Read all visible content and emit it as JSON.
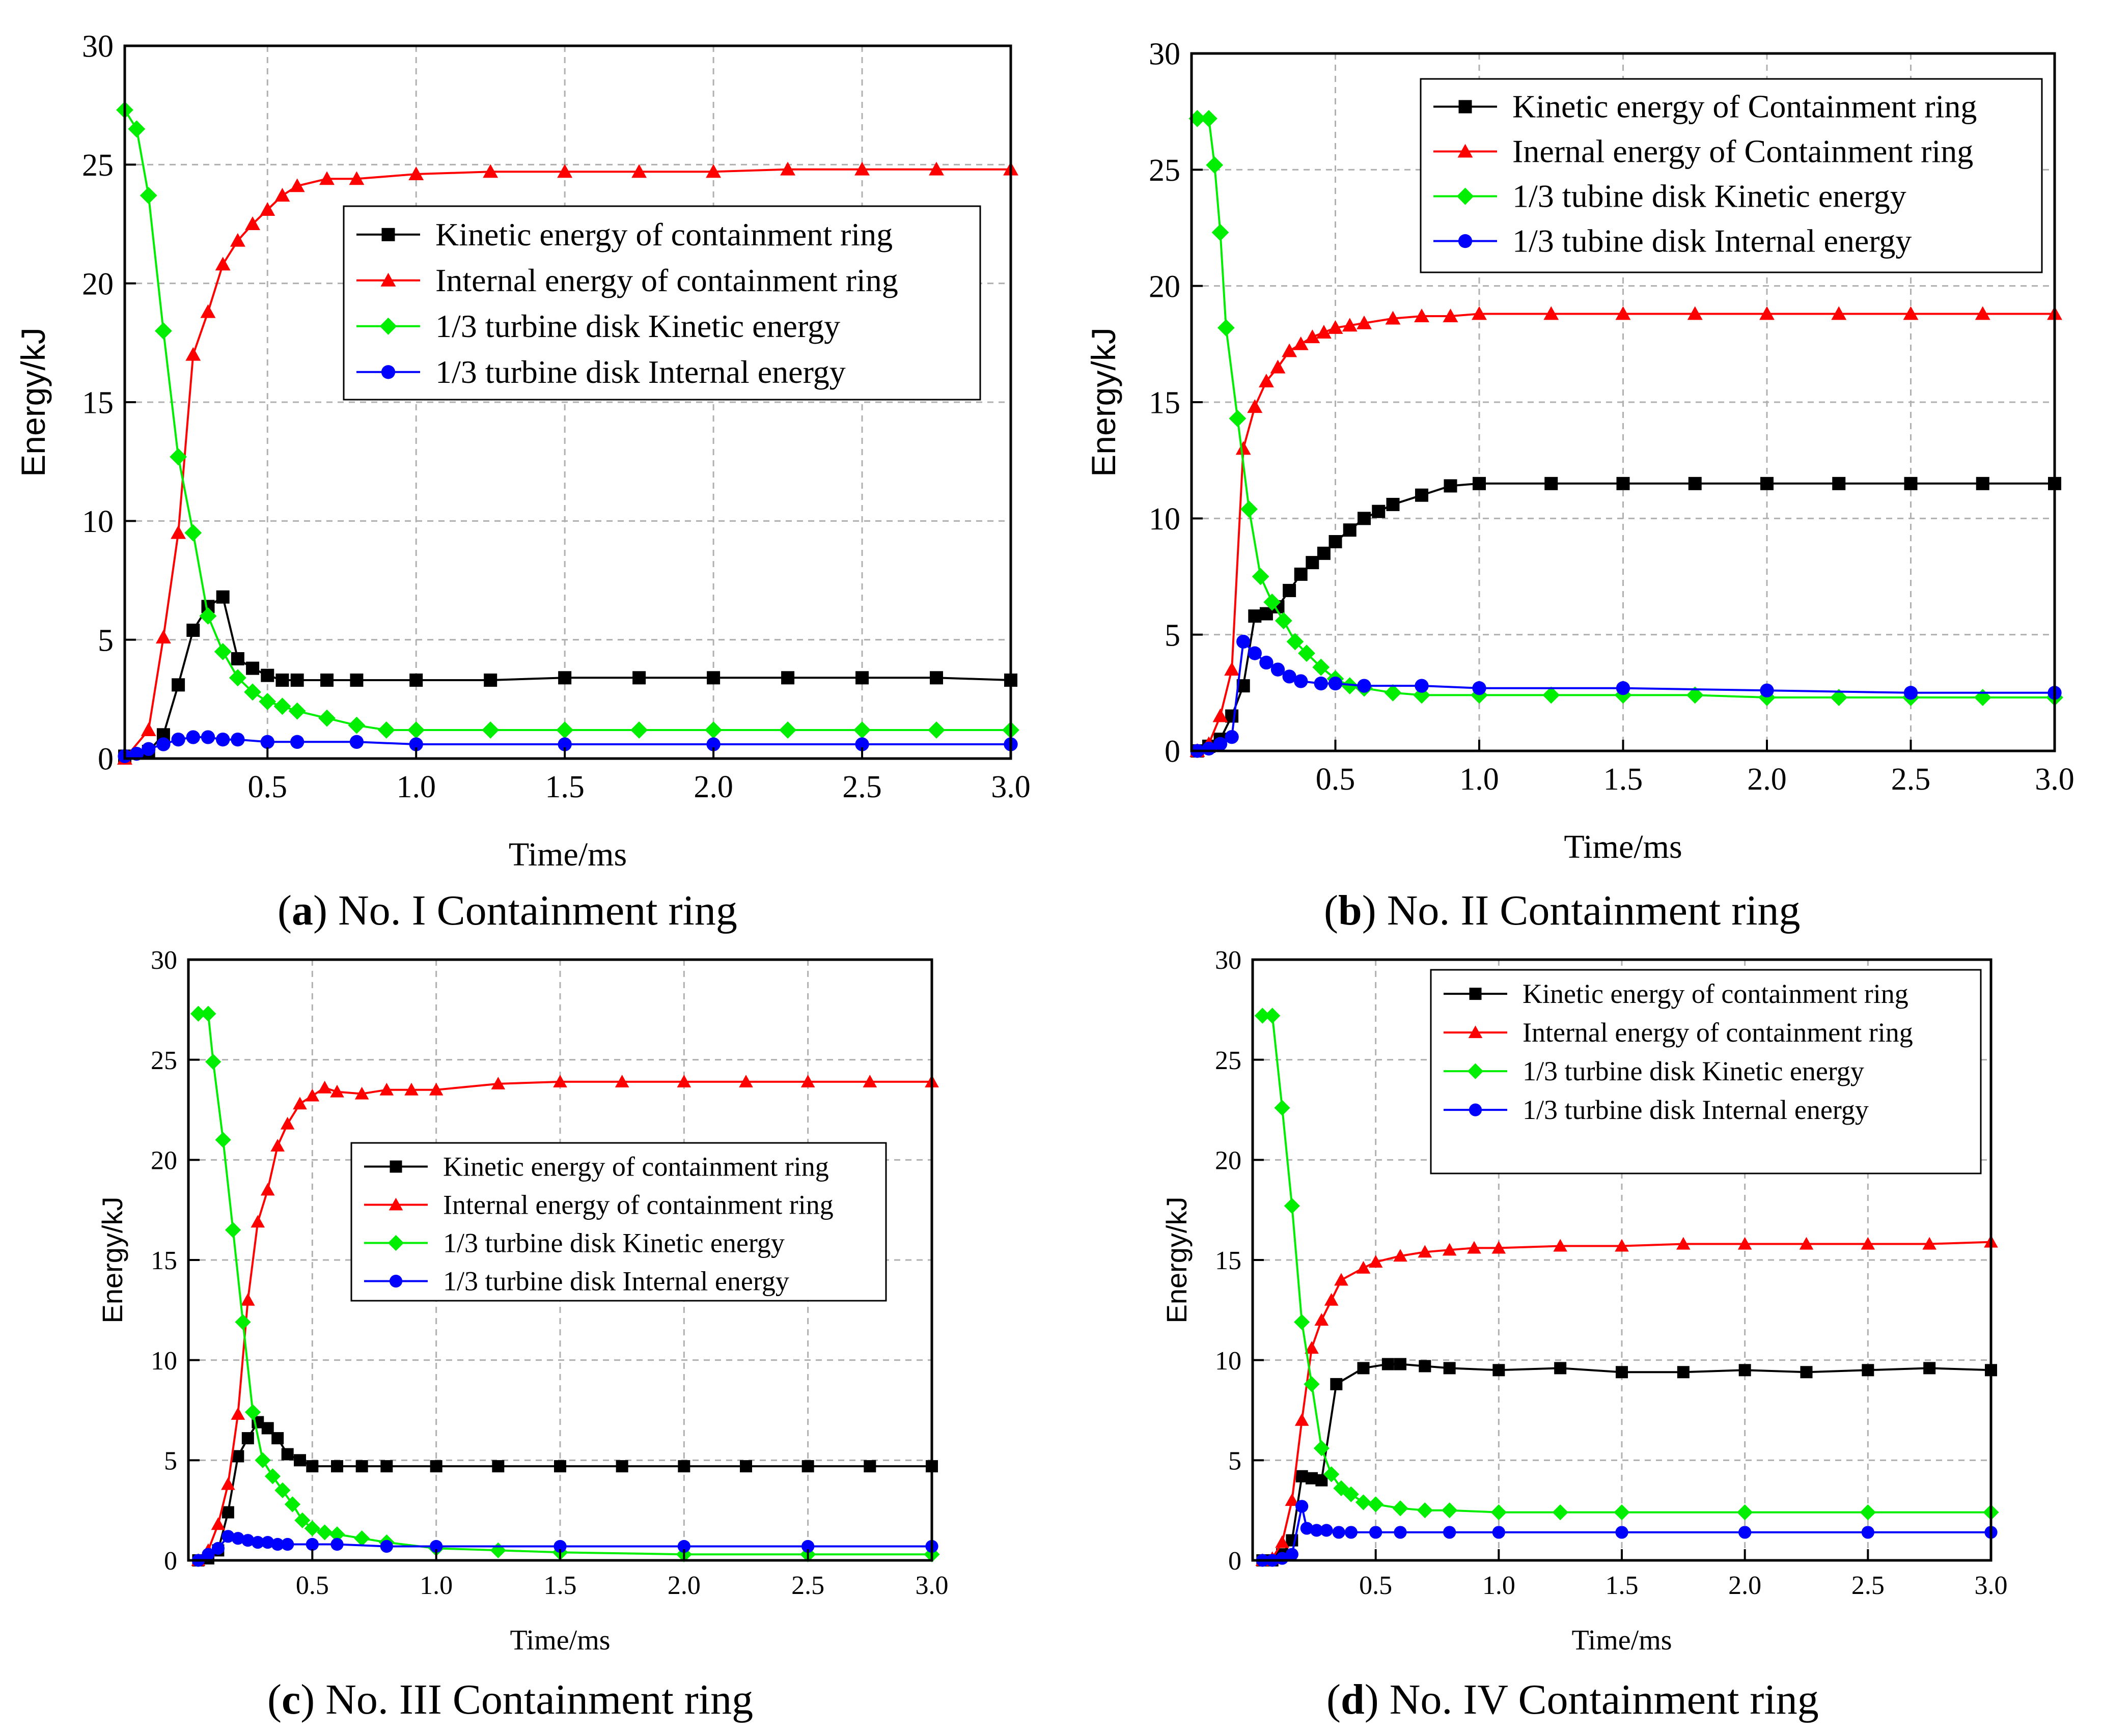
{
  "figure": {
    "panels": [
      {
        "id": "a",
        "letter": "a",
        "caption": "No. I Containment ring"
      },
      {
        "id": "b",
        "letter": "b",
        "caption": "No. II Containment ring"
      },
      {
        "id": "c",
        "letter": "c",
        "caption": "No. III Containment ring"
      },
      {
        "id": "d",
        "letter": "d",
        "caption": "No. IV Containment ring"
      }
    ]
  },
  "colors": {
    "kinetic_ring": "#000000",
    "internal_ring": "#ff0000",
    "disk_kinetic": "#00ee00",
    "disk_internal": "#0000ff"
  },
  "chart_data": [
    {
      "type": "line",
      "panel": "a",
      "xlabel": "Time/ms",
      "ylabel": "Energy/kJ",
      "xlim": [
        0.02,
        3.0
      ],
      "ylim": [
        0,
        30
      ],
      "xticks": [
        "0.5",
        "1.0",
        "1.5",
        "2.0",
        "2.5",
        "3.0"
      ],
      "yticks": [
        "0",
        "5",
        "10",
        "15",
        "20",
        "25",
        "30"
      ],
      "grid": true,
      "legend_position": "upper-right",
      "series": [
        {
          "name": "Kinetic energy of containment ring",
          "marker": "square",
          "color": "#000000",
          "x": [
            0.02,
            0.1,
            0.15,
            0.2,
            0.25,
            0.3,
            0.35,
            0.4,
            0.45,
            0.5,
            0.55,
            0.6,
            0.7,
            0.8,
            1.0,
            1.25,
            1.5,
            1.75,
            2.0,
            2.25,
            2.5,
            2.75,
            3.0
          ],
          "y": [
            0.1,
            0.3,
            1.0,
            3.1,
            5.4,
            6.4,
            6.8,
            4.2,
            3.8,
            3.5,
            3.3,
            3.3,
            3.3,
            3.3,
            3.3,
            3.3,
            3.4,
            3.4,
            3.4,
            3.4,
            3.4,
            3.4,
            3.3
          ]
        },
        {
          "name": "Internal energy of containment ring",
          "marker": "triangle",
          "color": "#ff0000",
          "x": [
            0.02,
            0.1,
            0.15,
            0.2,
            0.25,
            0.3,
            0.35,
            0.4,
            0.45,
            0.5,
            0.55,
            0.6,
            0.7,
            0.8,
            1.0,
            1.25,
            1.5,
            1.75,
            2.0,
            2.25,
            2.5,
            2.75,
            3.0
          ],
          "y": [
            0.0,
            1.2,
            5.1,
            9.5,
            17.0,
            18.8,
            20.8,
            21.8,
            22.5,
            23.1,
            23.7,
            24.1,
            24.4,
            24.4,
            24.6,
            24.7,
            24.7,
            24.7,
            24.7,
            24.8,
            24.8,
            24.8,
            24.8
          ]
        },
        {
          "name": "1/3 turbine disk Kinetic energy",
          "marker": "diamond",
          "color": "#00ee00",
          "x": [
            0.02,
            0.06,
            0.1,
            0.15,
            0.2,
            0.25,
            0.3,
            0.35,
            0.4,
            0.45,
            0.5,
            0.55,
            0.6,
            0.7,
            0.8,
            0.9,
            1.0,
            1.25,
            1.5,
            1.75,
            2.0,
            2.25,
            2.5,
            2.75,
            3.0
          ],
          "y": [
            27.3,
            26.5,
            23.7,
            18.0,
            12.7,
            9.5,
            6.0,
            4.5,
            3.4,
            2.8,
            2.4,
            2.2,
            2.0,
            1.7,
            1.4,
            1.2,
            1.2,
            1.2,
            1.2,
            1.2,
            1.2,
            1.2,
            1.2,
            1.2,
            1.2
          ]
        },
        {
          "name": "1/3 turbine disk Internal energy",
          "marker": "circle",
          "color": "#0000ff",
          "x": [
            0.02,
            0.06,
            0.1,
            0.15,
            0.2,
            0.25,
            0.3,
            0.35,
            0.4,
            0.5,
            0.6,
            0.8,
            1.0,
            1.5,
            2.0,
            2.5,
            3.0
          ],
          "y": [
            0.1,
            0.2,
            0.4,
            0.6,
            0.8,
            0.9,
            0.9,
            0.8,
            0.8,
            0.7,
            0.7,
            0.7,
            0.6,
            0.6,
            0.6,
            0.6,
            0.6
          ]
        }
      ]
    },
    {
      "type": "line",
      "panel": "b",
      "xlabel": "Time/ms",
      "ylabel": "Energy/kJ",
      "xlim": [
        0.0,
        3.0
      ],
      "ylim": [
        0,
        30
      ],
      "xticks": [
        "0.5",
        "1.0",
        "1.5",
        "2.0",
        "2.5",
        "3.0"
      ],
      "yticks": [
        "0",
        "5",
        "10",
        "15",
        "20",
        "25",
        "30"
      ],
      "grid": true,
      "legend_position": "upper-right",
      "series": [
        {
          "name": "Kinetic energy of Containment ring",
          "marker": "square",
          "color": "#000000",
          "x": [
            0.02,
            0.06,
            0.1,
            0.14,
            0.18,
            0.22,
            0.26,
            0.3,
            0.34,
            0.38,
            0.42,
            0.46,
            0.5,
            0.55,
            0.6,
            0.65,
            0.7,
            0.8,
            0.9,
            1.0,
            1.25,
            1.5,
            1.75,
            2.0,
            2.25,
            2.5,
            2.75,
            3.0
          ],
          "y": [
            0.0,
            0.2,
            0.5,
            1.5,
            2.8,
            5.8,
            5.9,
            6.2,
            6.9,
            7.6,
            8.1,
            8.5,
            9.0,
            9.5,
            10.0,
            10.3,
            10.6,
            11.0,
            11.4,
            11.5,
            11.5,
            11.5,
            11.5,
            11.5,
            11.5,
            11.5,
            11.5,
            11.5
          ]
        },
        {
          "name": "Inernal energy of Containment ring",
          "marker": "triangle",
          "color": "#ff0000",
          "x": [
            0.02,
            0.06,
            0.1,
            0.14,
            0.18,
            0.22,
            0.26,
            0.3,
            0.34,
            0.38,
            0.42,
            0.46,
            0.5,
            0.55,
            0.6,
            0.7,
            0.8,
            0.9,
            1.0,
            1.25,
            1.5,
            1.75,
            2.0,
            2.25,
            2.5,
            2.75,
            3.0
          ],
          "y": [
            0.0,
            0.3,
            1.5,
            3.5,
            13.0,
            14.8,
            15.9,
            16.5,
            17.2,
            17.5,
            17.8,
            18.0,
            18.2,
            18.3,
            18.4,
            18.6,
            18.7,
            18.7,
            18.8,
            18.8,
            18.8,
            18.8,
            18.8,
            18.8,
            18.8,
            18.8,
            18.8
          ]
        },
        {
          "name": "1/3 tubine disk Kinetic energy",
          "marker": "diamond",
          "color": "#00ee00",
          "x": [
            0.02,
            0.06,
            0.08,
            0.1,
            0.12,
            0.16,
            0.2,
            0.24,
            0.28,
            0.32,
            0.36,
            0.4,
            0.45,
            0.5,
            0.55,
            0.6,
            0.7,
            0.8,
            1.0,
            1.25,
            1.5,
            1.75,
            2.0,
            2.25,
            2.5,
            2.75,
            3.0
          ],
          "y": [
            27.2,
            27.2,
            25.2,
            22.3,
            18.2,
            14.3,
            10.4,
            7.5,
            6.4,
            5.6,
            4.7,
            4.2,
            3.6,
            3.1,
            2.8,
            2.7,
            2.5,
            2.4,
            2.4,
            2.4,
            2.4,
            2.4,
            2.3,
            2.3,
            2.3,
            2.3,
            2.3
          ]
        },
        {
          "name": "1/3 tubine disk Internal energy",
          "marker": "circle",
          "color": "#0000ff",
          "x": [
            0.02,
            0.06,
            0.1,
            0.14,
            0.18,
            0.22,
            0.26,
            0.3,
            0.34,
            0.38,
            0.45,
            0.5,
            0.6,
            0.8,
            1.0,
            1.5,
            2.0,
            2.5,
            3.0
          ],
          "y": [
            0.0,
            0.1,
            0.3,
            0.6,
            4.7,
            4.2,
            3.8,
            3.5,
            3.2,
            3.0,
            2.9,
            2.9,
            2.8,
            2.8,
            2.7,
            2.7,
            2.6,
            2.5,
            2.5
          ]
        }
      ]
    },
    {
      "type": "line",
      "panel": "c",
      "xlabel": "Time/ms",
      "ylabel": "Energy/kJ",
      "xlim": [
        0.0,
        3.0
      ],
      "ylim": [
        0,
        30
      ],
      "xticks": [
        "0.5",
        "1.0",
        "1.5",
        "2.0",
        "2.5",
        "3.0"
      ],
      "yticks": [
        "0",
        "5",
        "10",
        "15",
        "20",
        "25",
        "30"
      ],
      "grid": true,
      "legend_position": "center-right",
      "series": [
        {
          "name": "Kinetic energy of containment ring",
          "marker": "square",
          "color": "#000000",
          "x": [
            0.04,
            0.08,
            0.12,
            0.16,
            0.2,
            0.24,
            0.28,
            0.32,
            0.36,
            0.4,
            0.45,
            0.5,
            0.6,
            0.7,
            0.8,
            1.0,
            1.25,
            1.5,
            1.75,
            2.0,
            2.25,
            2.5,
            2.75,
            3.0
          ],
          "y": [
            0.0,
            0.1,
            0.5,
            2.4,
            5.2,
            6.1,
            6.9,
            6.6,
            6.1,
            5.3,
            5.0,
            4.7,
            4.7,
            4.7,
            4.7,
            4.7,
            4.7,
            4.7,
            4.7,
            4.7,
            4.7,
            4.7,
            4.7,
            4.7
          ]
        },
        {
          "name": "Internal energy of containment ring",
          "marker": "triangle",
          "color": "#ff0000",
          "x": [
            0.04,
            0.08,
            0.12,
            0.16,
            0.2,
            0.24,
            0.28,
            0.32,
            0.36,
            0.4,
            0.45,
            0.5,
            0.55,
            0.6,
            0.7,
            0.8,
            0.9,
            1.0,
            1.25,
            1.5,
            1.75,
            2.0,
            2.25,
            2.5,
            2.75,
            3.0
          ],
          "y": [
            0.0,
            0.5,
            1.8,
            3.8,
            7.3,
            13.0,
            16.9,
            18.5,
            20.7,
            21.8,
            22.8,
            23.2,
            23.6,
            23.4,
            23.3,
            23.5,
            23.5,
            23.5,
            23.8,
            23.9,
            23.9,
            23.9,
            23.9,
            23.9,
            23.9,
            23.9
          ]
        },
        {
          "name": "1/3 turbine disk Kinetic energy",
          "marker": "diamond",
          "color": "#00ee00",
          "x": [
            0.04,
            0.08,
            0.1,
            0.14,
            0.18,
            0.22,
            0.26,
            0.3,
            0.34,
            0.38,
            0.42,
            0.46,
            0.5,
            0.55,
            0.6,
            0.7,
            0.8,
            1.0,
            1.25,
            1.5,
            2.0,
            2.5,
            3.0
          ],
          "y": [
            27.3,
            27.3,
            24.9,
            21.0,
            16.5,
            11.9,
            7.4,
            5.0,
            4.2,
            3.5,
            2.8,
            2.0,
            1.6,
            1.4,
            1.3,
            1.1,
            0.9,
            0.6,
            0.5,
            0.4,
            0.3,
            0.3,
            0.3
          ]
        },
        {
          "name": "1/3 turbine disk Internal energy",
          "marker": "circle",
          "color": "#0000ff",
          "x": [
            0.04,
            0.08,
            0.12,
            0.16,
            0.2,
            0.24,
            0.28,
            0.32,
            0.36,
            0.4,
            0.5,
            0.6,
            0.8,
            1.0,
            1.5,
            2.0,
            2.5,
            3.0
          ],
          "y": [
            0.0,
            0.3,
            0.6,
            1.2,
            1.1,
            1.0,
            0.9,
            0.9,
            0.8,
            0.8,
            0.8,
            0.8,
            0.7,
            0.7,
            0.7,
            0.7,
            0.7,
            0.7
          ]
        }
      ]
    },
    {
      "type": "line",
      "panel": "d",
      "xlabel": "Time/ms",
      "ylabel": "Energy/kJ",
      "xlim": [
        0.0,
        3.0
      ],
      "ylim": [
        0,
        30
      ],
      "xticks": [
        "0.5",
        "1.0",
        "1.5",
        "2.0",
        "2.5",
        "3.0"
      ],
      "yticks": [
        "0",
        "5",
        "10",
        "15",
        "20",
        "25",
        "30"
      ],
      "grid": true,
      "legend_position": "upper-right",
      "series": [
        {
          "name": "Kinetic energy of containment ring",
          "marker": "square",
          "color": "#000000",
          "x": [
            0.04,
            0.08,
            0.12,
            0.16,
            0.2,
            0.24,
            0.28,
            0.34,
            0.45,
            0.55,
            0.6,
            0.7,
            0.8,
            1.0,
            1.25,
            1.5,
            1.75,
            2.0,
            2.25,
            2.5,
            2.75,
            3.0
          ],
          "y": [
            0.0,
            0.0,
            0.3,
            1.0,
            4.2,
            4.1,
            4.0,
            8.8,
            9.6,
            9.8,
            9.8,
            9.7,
            9.6,
            9.5,
            9.6,
            9.4,
            9.4,
            9.5,
            9.4,
            9.5,
            9.6,
            9.5
          ]
        },
        {
          "name": "Internal energy of containment ring",
          "marker": "triangle",
          "color": "#ff0000",
          "x": [
            0.04,
            0.08,
            0.12,
            0.16,
            0.2,
            0.24,
            0.28,
            0.32,
            0.36,
            0.45,
            0.5,
            0.6,
            0.7,
            0.8,
            0.9,
            1.0,
            1.25,
            1.5,
            1.75,
            2.0,
            2.25,
            2.5,
            2.75,
            3.0
          ],
          "y": [
            0.0,
            0.1,
            0.9,
            3.0,
            7.0,
            10.6,
            12.0,
            13.0,
            14.0,
            14.6,
            14.9,
            15.2,
            15.4,
            15.5,
            15.6,
            15.6,
            15.7,
            15.7,
            15.8,
            15.8,
            15.8,
            15.8,
            15.8,
            15.9
          ]
        },
        {
          "name": "1/3 turbine disk Kinetic energy",
          "marker": "diamond",
          "color": "#00ee00",
          "x": [
            0.04,
            0.08,
            0.12,
            0.16,
            0.2,
            0.24,
            0.28,
            0.32,
            0.36,
            0.4,
            0.45,
            0.5,
            0.6,
            0.7,
            0.8,
            1.0,
            1.25,
            1.5,
            2.0,
            2.5,
            3.0
          ],
          "y": [
            27.2,
            27.2,
            22.6,
            17.7,
            11.9,
            8.8,
            5.6,
            4.3,
            3.6,
            3.3,
            2.9,
            2.8,
            2.6,
            2.5,
            2.5,
            2.4,
            2.4,
            2.4,
            2.4,
            2.4,
            2.4
          ]
        },
        {
          "name": "1/3 turbine disk Internal energy",
          "marker": "circle",
          "color": "#0000ff",
          "x": [
            0.04,
            0.08,
            0.12,
            0.16,
            0.2,
            0.22,
            0.26,
            0.3,
            0.35,
            0.4,
            0.5,
            0.6,
            0.8,
            1.0,
            1.5,
            2.0,
            2.5,
            3.0
          ],
          "y": [
            0.0,
            0.0,
            0.1,
            0.3,
            2.7,
            1.6,
            1.5,
            1.5,
            1.4,
            1.4,
            1.4,
            1.4,
            1.4,
            1.4,
            1.4,
            1.4,
            1.4,
            1.4
          ]
        }
      ]
    }
  ]
}
